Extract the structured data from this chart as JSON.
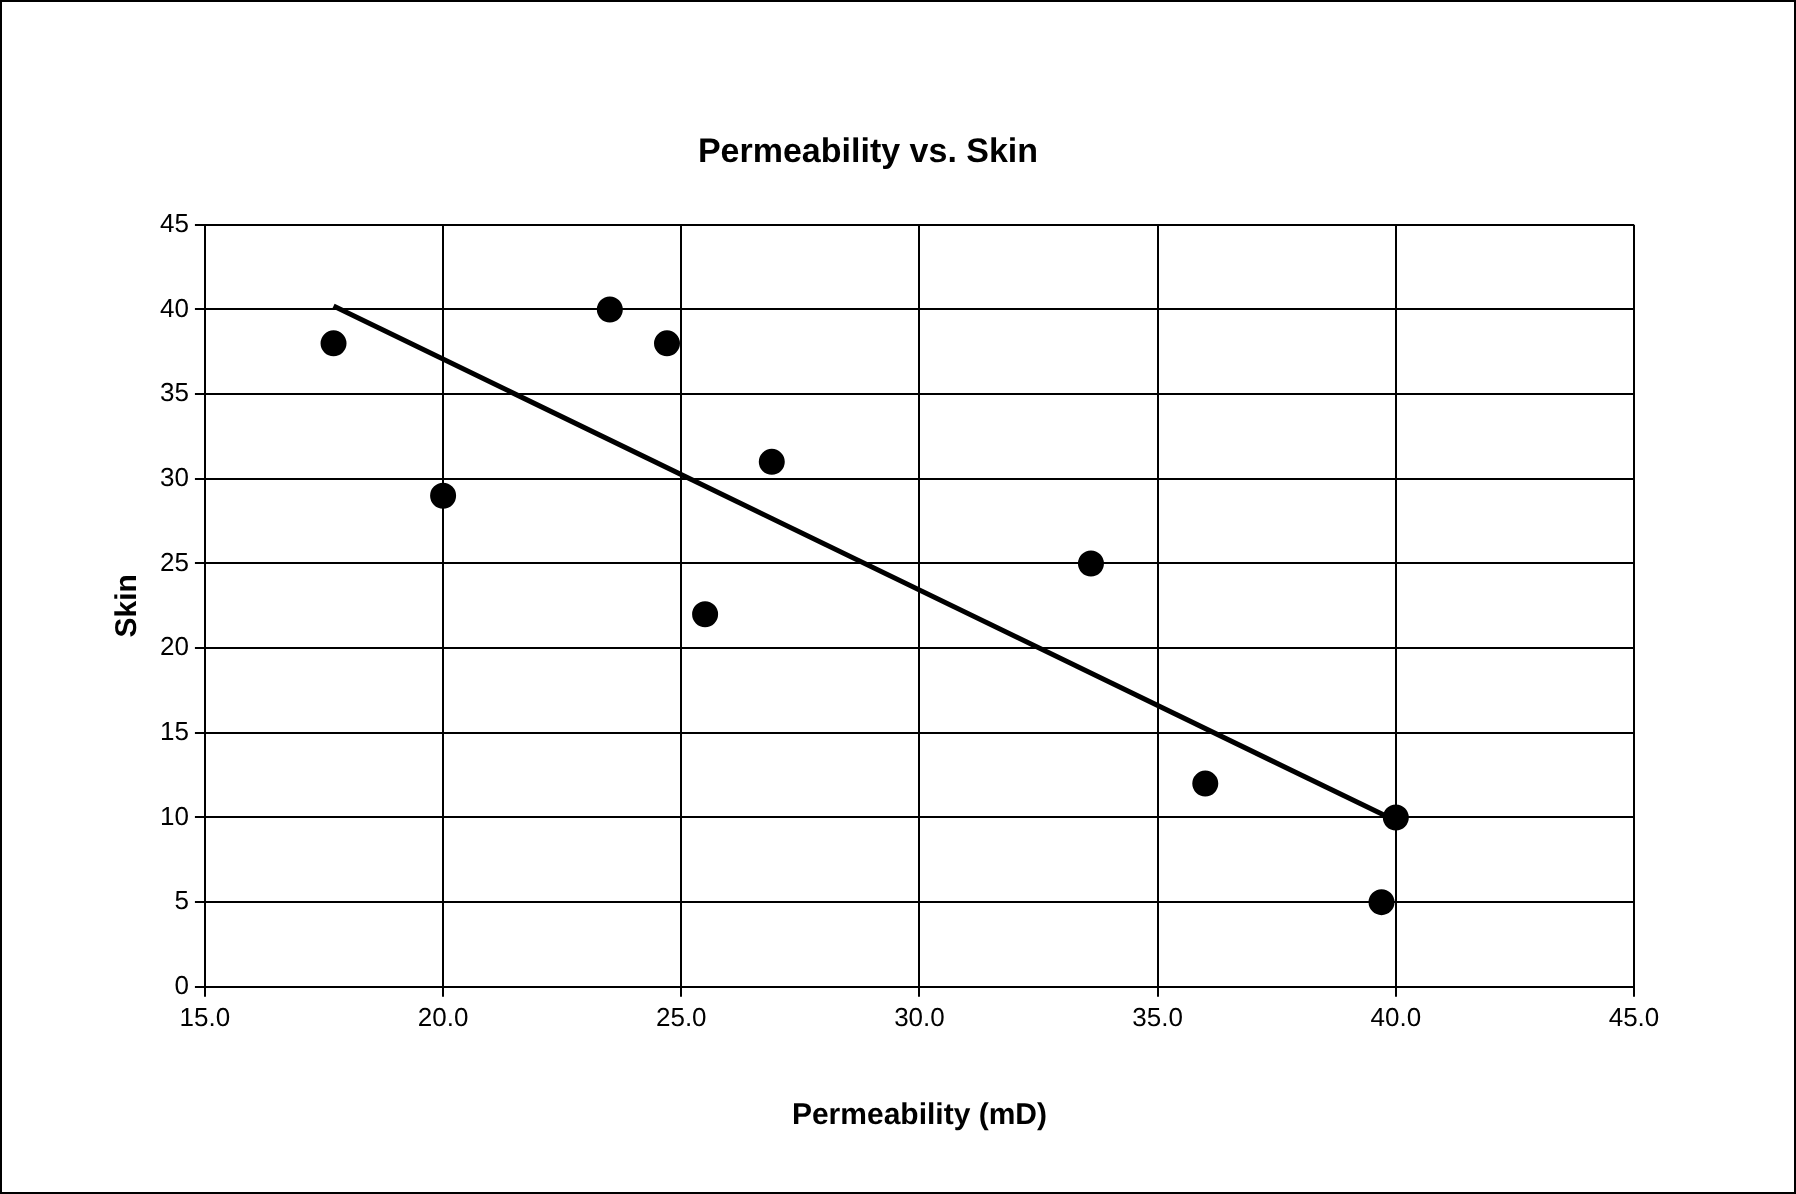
{
  "chart_data": {
    "type": "scatter",
    "title": "Permeability vs. Skin",
    "xlabel": "Permeability (mD)",
    "ylabel": "Skin",
    "series": [
      {
        "type": "scatter",
        "color": "#000000",
        "marker": "circle",
        "x": [
          17.7,
          20.0,
          23.5,
          24.7,
          25.5,
          26.9,
          33.6,
          36.0,
          40.0,
          39.7
        ],
        "values": [
          38,
          29,
          40,
          38,
          22,
          31,
          25,
          12,
          10,
          5
        ]
      },
      {
        "type": "line",
        "color": "#000000",
        "marker": "none",
        "line_style": "solid",
        "x": [
          17.7,
          40.0
        ],
        "values": [
          40.2,
          9.8
        ]
      }
    ],
    "xlim": [
      15,
      45
    ],
    "xticks": [
      {
        "value": 15,
        "label": "15.0"
      },
      {
        "value": 20,
        "label": "20.0"
      },
      {
        "value": 25,
        "label": "25.0"
      },
      {
        "value": 30,
        "label": "30.0"
      },
      {
        "value": 35,
        "label": "35.0"
      },
      {
        "value": 40,
        "label": "40.0"
      },
      {
        "value": 45,
        "label": "45.0"
      }
    ],
    "ylim": [
      0,
      45
    ],
    "yticks": [
      0,
      5,
      10,
      15,
      20,
      25,
      30,
      35,
      40,
      45
    ],
    "grid": true,
    "legend": false
  }
}
